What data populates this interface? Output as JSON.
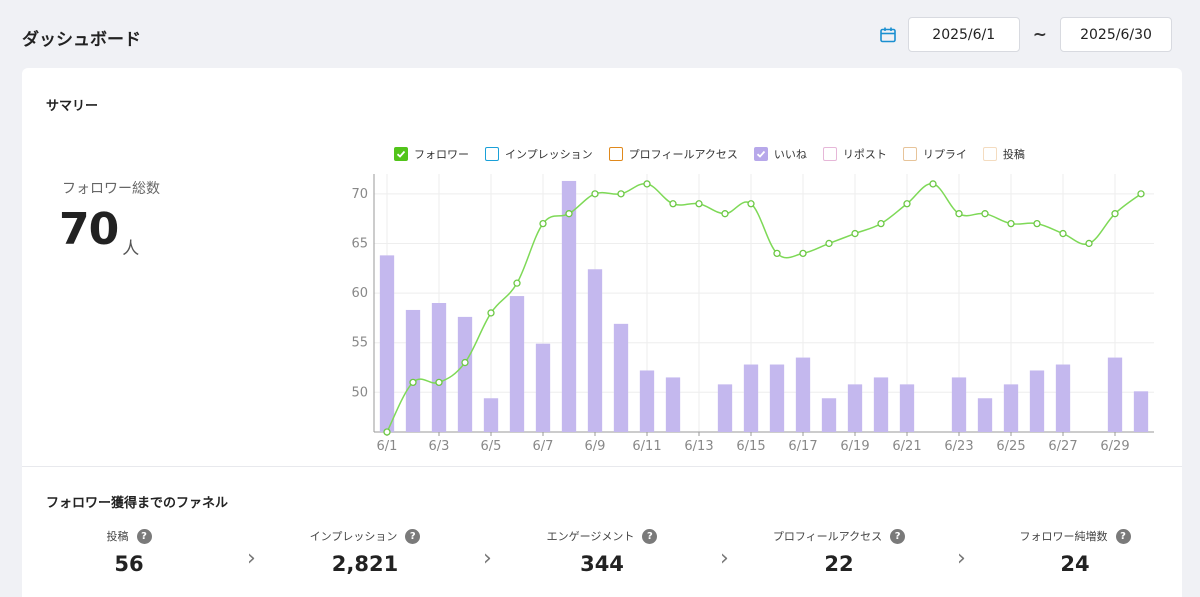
{
  "header": {
    "title": "ダッシュボード",
    "date_from": "2025/6/1",
    "date_separator": "~",
    "date_to": "2025/6/30"
  },
  "summary": {
    "title": "サマリー",
    "followers_label": "フォロワー総数",
    "followers_value": "70",
    "followers_unit": "人"
  },
  "legend": [
    {
      "label": "フォロワー",
      "color": "#52c41a",
      "checked": true
    },
    {
      "label": "インプレッション",
      "color": "#1aa0d8",
      "checked": false
    },
    {
      "label": "プロフィールアクセス",
      "color": "#e0891c",
      "checked": false
    },
    {
      "label": "いいね",
      "color": "#b7a8ea",
      "checked": true
    },
    {
      "label": "リポスト",
      "color": "#e6b7d8",
      "checked": false
    },
    {
      "label": "リプライ",
      "color": "#e7c49a",
      "checked": false
    },
    {
      "label": "投稿",
      "color": "#f4dcc0",
      "checked": false
    }
  ],
  "chart_data": {
    "type": "bar+line",
    "categories": [
      "6/1",
      "6/2",
      "6/3",
      "6/4",
      "6/5",
      "6/6",
      "6/7",
      "6/8",
      "6/9",
      "6/10",
      "6/11",
      "6/12",
      "6/13",
      "6/14",
      "6/15",
      "6/16",
      "6/17",
      "6/18",
      "6/19",
      "6/20",
      "6/21",
      "6/22",
      "6/23",
      "6/24",
      "6/25",
      "6/26",
      "6/27",
      "6/28",
      "6/29",
      "6/30"
    ],
    "x_tick_labels": [
      "6/1",
      "6/3",
      "6/5",
      "6/7",
      "6/9",
      "6/11",
      "6/13",
      "6/15",
      "6/17",
      "6/19",
      "6/21",
      "6/23",
      "6/25",
      "6/27",
      "6/29"
    ],
    "y_ticks": [
      50,
      55,
      60,
      65,
      70
    ],
    "ylim": [
      46,
      72
    ],
    "grid": true,
    "legend_position": "top",
    "series": [
      {
        "name": "フォロワー",
        "type": "line",
        "color": "#52c41a",
        "values": [
          46,
          51,
          51,
          53,
          58,
          61,
          67,
          68,
          70,
          70,
          71,
          69,
          69,
          68,
          69,
          64,
          64,
          65,
          66,
          67,
          69,
          71,
          68,
          68,
          67,
          67,
          66,
          65,
          68,
          70
        ]
      },
      {
        "name": "いいね",
        "type": "bar",
        "color": "#c4b8ee",
        "values": [
          63.8,
          58.3,
          59,
          57.6,
          49.4,
          59.7,
          54.9,
          71.3,
          62.4,
          56.9,
          52.2,
          51.5,
          null,
          50.8,
          52.8,
          52.8,
          53.5,
          49.4,
          50.8,
          51.5,
          50.8,
          null,
          51.5,
          49.4,
          50.8,
          52.2,
          52.8,
          null,
          53.5,
          50.1
        ]
      }
    ]
  },
  "funnel": {
    "title": "フォロワー獲得までのファネル",
    "help_symbol": "?",
    "arrow_symbol": "›",
    "steps": [
      {
        "label": "投稿",
        "value": "56"
      },
      {
        "label": "インプレッション",
        "value": "2,821"
      },
      {
        "label": "エンゲージメント",
        "value": "344"
      },
      {
        "label": "プロフィールアクセス",
        "value": "22"
      },
      {
        "label": "フォロワー純増数",
        "value": "24"
      }
    ]
  }
}
